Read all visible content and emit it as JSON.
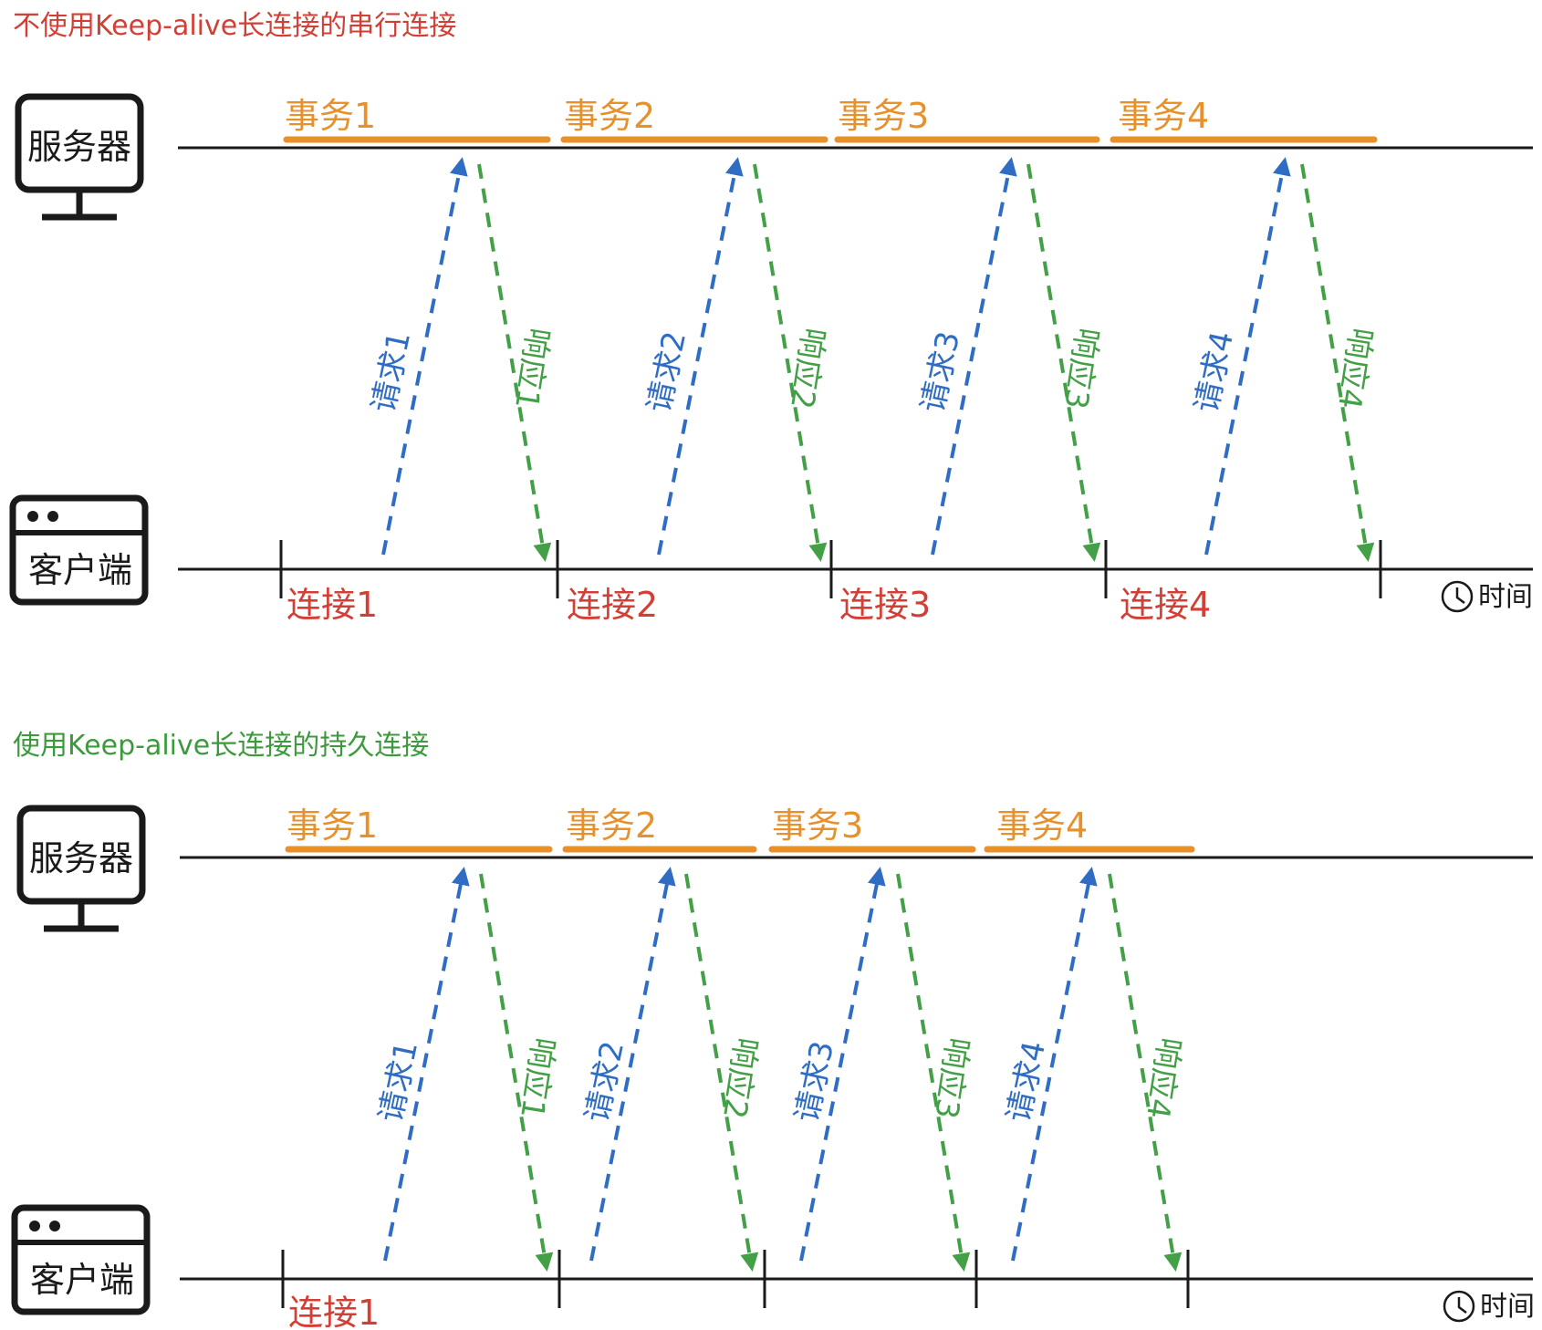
{
  "colors": {
    "title_serial": "#d23f35",
    "title_keepalive": "#3c9a3c",
    "transaction": "#e8902a",
    "request": "#2f6dc4",
    "response": "#43a047",
    "connection": "#d23f35",
    "line": "#1a1a1a"
  },
  "icons": {
    "server": "monitor-icon",
    "client": "browser-window-icon",
    "time": "clock-icon"
  },
  "panels": [
    {
      "title": "不使用Keep-alive长连接的串行连接",
      "server_label": "服务器",
      "client_label": "客户端",
      "time_label": "时间",
      "transactions": [
        "事务1",
        "事务2",
        "事务3",
        "事务4"
      ],
      "requests": [
        "请求1",
        "请求2",
        "请求3",
        "请求4"
      ],
      "responses": [
        "响应1",
        "响应2",
        "响应3",
        "响应4"
      ],
      "connections": [
        "连接1",
        "连接2",
        "连接3",
        "连接4"
      ]
    },
    {
      "title": "使用Keep-alive长连接的持久连接",
      "server_label": "服务器",
      "client_label": "客户端",
      "time_label": "时间",
      "transactions": [
        "事务1",
        "事务2",
        "事务3",
        "事务4"
      ],
      "requests": [
        "请求1",
        "请求2",
        "请求3",
        "请求4"
      ],
      "responses": [
        "响应1",
        "响应2",
        "响应3",
        "响应4"
      ],
      "connections": [
        "连接1"
      ]
    }
  ]
}
